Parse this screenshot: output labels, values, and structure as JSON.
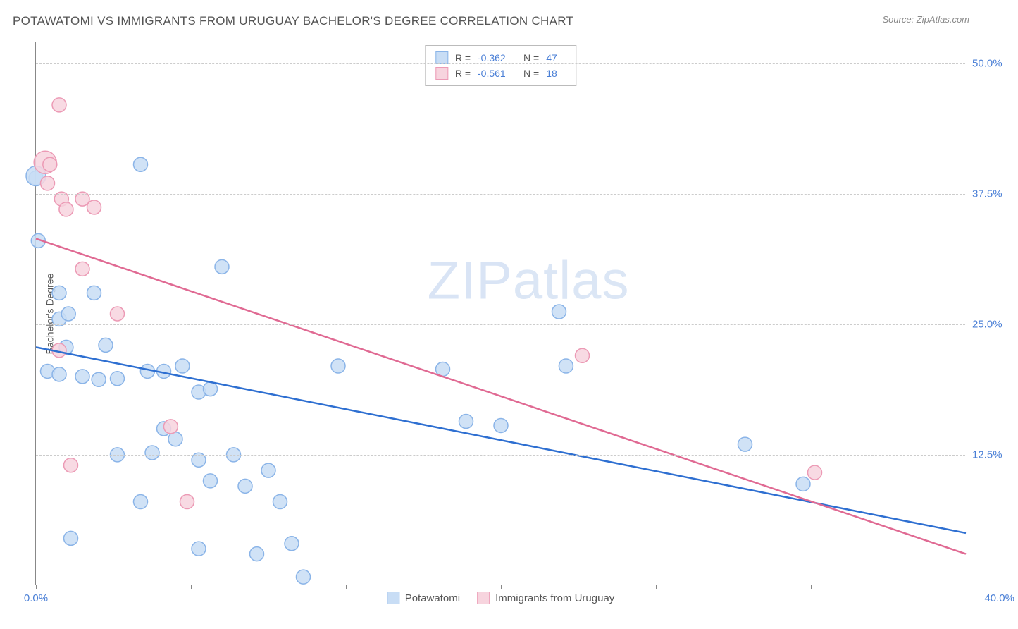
{
  "header": {
    "title": "POTAWATOMI VS IMMIGRANTS FROM URUGUAY BACHELOR'S DEGREE CORRELATION CHART",
    "source": "Source: ZipAtlas.com"
  },
  "watermark": {
    "bold": "ZIP",
    "light": "atlas"
  },
  "chart": {
    "type": "scatter",
    "xlim": [
      0,
      40
    ],
    "ylim": [
      0,
      52
    ],
    "ylabel": "Bachelor's Degree",
    "yticks": [
      {
        "v": 12.5,
        "label": "12.5%"
      },
      {
        "v": 25.0,
        "label": "25.0%"
      },
      {
        "v": 37.5,
        "label": "37.5%"
      },
      {
        "v": 50.0,
        "label": "50.0%"
      }
    ],
    "xticks": [
      {
        "v": 0,
        "label": "0.0%"
      },
      {
        "v": 6.67,
        "label": ""
      },
      {
        "v": 13.33,
        "label": ""
      },
      {
        "v": 20.0,
        "label": ""
      },
      {
        "v": 26.67,
        "label": ""
      },
      {
        "v": 33.33,
        "label": ""
      }
    ],
    "xmax_label": "40.0%",
    "grid_color": "#cccccc",
    "background_color": "#ffffff",
    "marker_radius": 10,
    "marker_stroke_width": 1.5,
    "line_width": 2.5,
    "series": [
      {
        "name": "Potawatomi",
        "fill": "#c8ddf5",
        "stroke": "#8ab4e8",
        "line_color": "#2e6fd1",
        "R": "-0.362",
        "N": "47",
        "trend": {
          "x1": 0,
          "y1": 22.8,
          "x2": 40,
          "y2": 5.0
        },
        "points": [
          [
            0.0,
            39.0
          ],
          [
            0.0,
            39.2,
            14
          ],
          [
            0.1,
            33.0
          ],
          [
            4.5,
            40.3
          ],
          [
            1.0,
            28.0
          ],
          [
            2.5,
            28.0
          ],
          [
            1.0,
            25.5
          ],
          [
            1.4,
            26.0
          ],
          [
            0.5,
            20.5
          ],
          [
            1.0,
            20.2
          ],
          [
            2.0,
            20.0
          ],
          [
            1.3,
            22.8
          ],
          [
            3.0,
            23.0
          ],
          [
            2.7,
            19.7
          ],
          [
            3.5,
            19.8
          ],
          [
            4.8,
            20.5
          ],
          [
            5.5,
            20.5
          ],
          [
            6.3,
            21.0
          ],
          [
            7.0,
            18.5
          ],
          [
            7.5,
            18.8
          ],
          [
            8.0,
            30.5
          ],
          [
            13.0,
            21.0
          ],
          [
            3.5,
            12.5
          ],
          [
            5.0,
            12.7
          ],
          [
            5.5,
            15.0
          ],
          [
            6.0,
            14.0
          ],
          [
            7.0,
            12.0
          ],
          [
            7.5,
            10.0
          ],
          [
            8.5,
            12.5
          ],
          [
            9.0,
            9.5
          ],
          [
            10.0,
            11.0
          ],
          [
            10.5,
            8.0
          ],
          [
            11.0,
            4.0
          ],
          [
            11.5,
            0.8
          ],
          [
            9.5,
            3.0
          ],
          [
            7.0,
            3.5
          ],
          [
            1.5,
            4.5
          ],
          [
            4.5,
            8.0
          ],
          [
            17.5,
            20.7
          ],
          [
            18.5,
            15.7
          ],
          [
            20.0,
            15.3
          ],
          [
            22.5,
            26.2
          ],
          [
            22.8,
            21.0
          ],
          [
            30.5,
            13.5
          ],
          [
            33.0,
            9.7
          ]
        ]
      },
      {
        "name": "Immigrants from Uruguay",
        "fill": "#f7d4de",
        "stroke": "#ec9ab5",
        "line_color": "#e06a93",
        "R": "-0.561",
        "N": "18",
        "trend": {
          "x1": 0,
          "y1": 33.2,
          "x2": 40,
          "y2": 3.0
        },
        "points": [
          [
            1.0,
            46.0
          ],
          [
            0.4,
            40.5,
            16
          ],
          [
            0.6,
            40.3
          ],
          [
            0.5,
            38.5
          ],
          [
            1.1,
            37.0
          ],
          [
            2.0,
            37.0
          ],
          [
            1.3,
            36.0
          ],
          [
            2.5,
            36.2
          ],
          [
            2.0,
            30.3
          ],
          [
            1.0,
            22.5
          ],
          [
            3.5,
            26.0
          ],
          [
            5.8,
            15.2
          ],
          [
            6.5,
            8.0
          ],
          [
            1.5,
            11.5
          ],
          [
            23.5,
            22.0
          ],
          [
            33.5,
            10.8
          ]
        ]
      }
    ],
    "legend_top": {
      "rows": [
        {
          "swatch_fill": "#c8ddf5",
          "swatch_stroke": "#8ab4e8",
          "R_label": "R =",
          "R": "-0.362",
          "N_label": "N =",
          "N": "47"
        },
        {
          "swatch_fill": "#f7d4de",
          "swatch_stroke": "#ec9ab5",
          "R_label": "R =",
          "R": "-0.561",
          "N_label": "N =",
          "N": "18"
        }
      ]
    },
    "legend_bottom": [
      {
        "swatch_fill": "#c8ddf5",
        "swatch_stroke": "#8ab4e8",
        "label": "Potawatomi"
      },
      {
        "swatch_fill": "#f7d4de",
        "swatch_stroke": "#ec9ab5",
        "label": "Immigrants from Uruguay"
      }
    ]
  }
}
